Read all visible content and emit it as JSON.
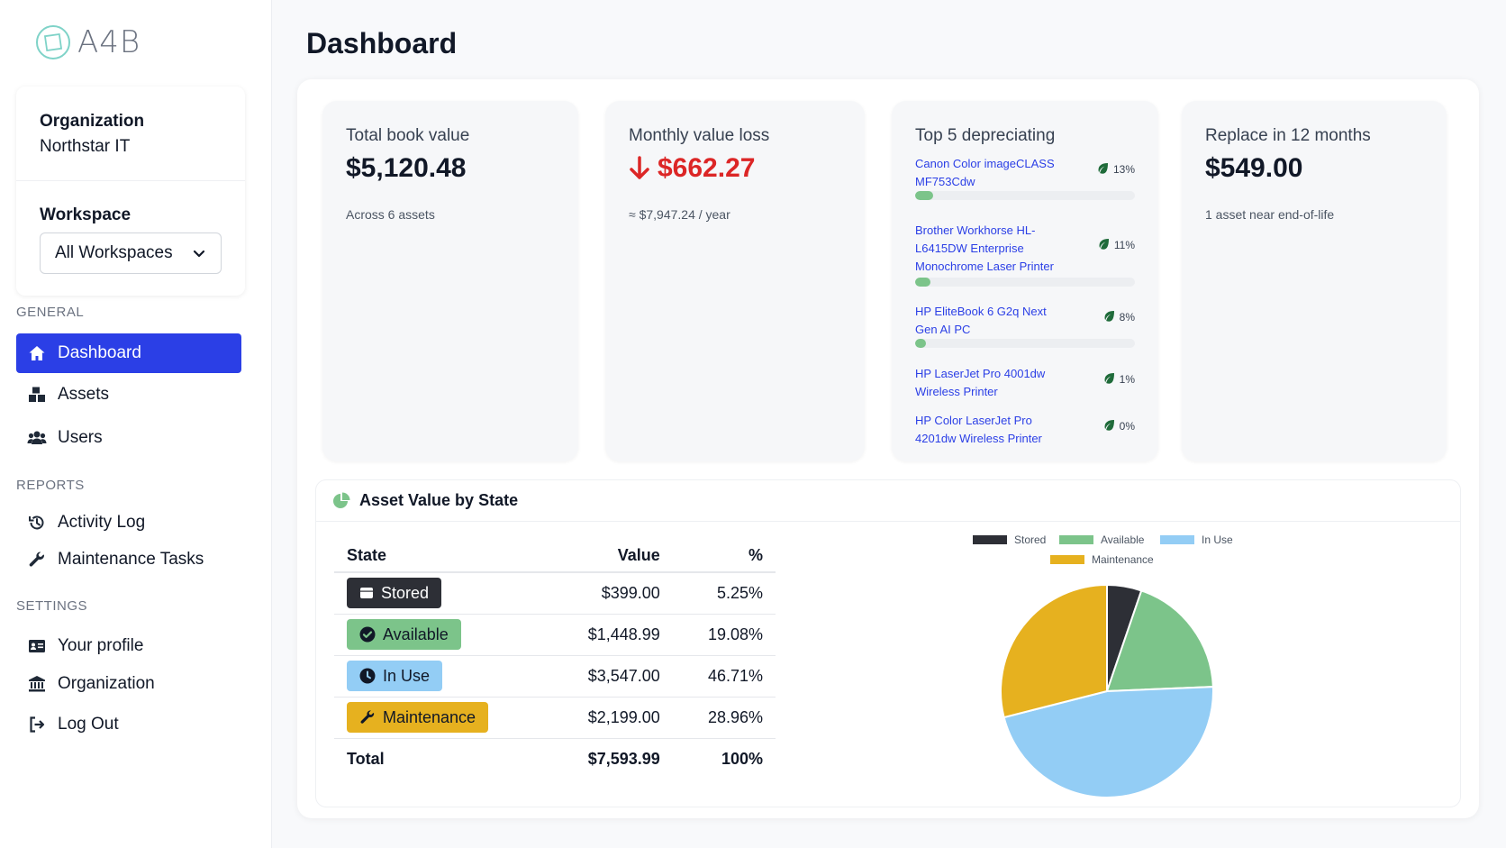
{
  "app": {
    "logo_text": "A4B"
  },
  "sidebar": {
    "org_label": "Organization",
    "org_value": "Northstar IT",
    "workspace_label": "Workspace",
    "workspace_value": "All Workspaces",
    "general_label": "GENERAL",
    "reports_label": "REPORTS",
    "settings_label": "SETTINGS",
    "items": [
      {
        "label": "Dashboard",
        "icon": "home-icon"
      },
      {
        "label": "Assets",
        "icon": "boxes-icon"
      },
      {
        "label": "Users",
        "icon": "users-icon"
      },
      {
        "label": "Activity Log",
        "icon": "history-icon"
      },
      {
        "label": "Maintenance Tasks",
        "icon": "wrench-icon"
      },
      {
        "label": "Your profile",
        "icon": "id-card-icon"
      },
      {
        "label": "Organization",
        "icon": "bank-icon"
      },
      {
        "label": "Log Out",
        "icon": "logout-icon"
      }
    ]
  },
  "page": {
    "title": "Dashboard"
  },
  "stats": {
    "book_value": {
      "title": "Total book value",
      "value": "$5,120.48",
      "sub": "Across 6 assets"
    },
    "monthly_loss": {
      "title": "Monthly value loss",
      "value": "$662.27",
      "sub": "≈ $7,947.24 / year"
    },
    "top_depreciating": {
      "title": "Top 5 depreciating",
      "items": [
        {
          "name": "Canon Color imageCLASS MF753Cdw",
          "pct": "13%",
          "fraction": 0.13
        },
        {
          "name": "Brother Workhorse HL-L6415DW Enterprise Monochrome Laser Printer",
          "pct": "11%",
          "fraction": 0.11
        },
        {
          "name": "HP EliteBook 6 G2q Next Gen AI PC",
          "pct": "8%",
          "fraction": 0.08
        },
        {
          "name": "HP LaserJet Pro 4001dw Wireless Printer",
          "pct": "1%",
          "fraction": 0.01
        },
        {
          "name": "HP Color LaserJet Pro 4201dw Wireless Printer",
          "pct": "0%",
          "fraction": 0.0
        }
      ]
    },
    "replace": {
      "title": "Replace in 12 months",
      "value": "$549.00",
      "sub": "1 asset near end-of-life"
    }
  },
  "state_section": {
    "title": "Asset Value by State",
    "columns": [
      "State",
      "Value",
      "%"
    ],
    "rows": [
      {
        "state": "Stored",
        "value": "$399.00",
        "pct": "5.25%",
        "icon": "archive-icon"
      },
      {
        "state": "Available",
        "value": "$1,448.99",
        "pct": "19.08%",
        "icon": "check-circle-icon"
      },
      {
        "state": "In Use",
        "value": "$3,547.00",
        "pct": "46.71%",
        "icon": "clock-icon"
      },
      {
        "state": "Maintenance",
        "value": "$2,199.00",
        "pct": "28.96%",
        "icon": "wrench-icon"
      }
    ],
    "total": {
      "label": "Total",
      "value": "$7,593.99",
      "pct": "100%"
    }
  },
  "colors": {
    "accent": "#2b3fe6",
    "loss": "#dc2626",
    "stored": "#2d2f36",
    "available": "#7cc48a",
    "in_use": "#93cdf5",
    "maintenance": "#e6b11f"
  },
  "chart_data": {
    "type": "pie",
    "categories": [
      "Stored",
      "Available",
      "In Use",
      "Maintenance"
    ],
    "values": [
      399.0,
      1448.99,
      3547.0,
      2199.0
    ],
    "colors": [
      "#2d2f36",
      "#7cc48a",
      "#93cdf5",
      "#e6b11f"
    ],
    "legend_position": "top"
  }
}
